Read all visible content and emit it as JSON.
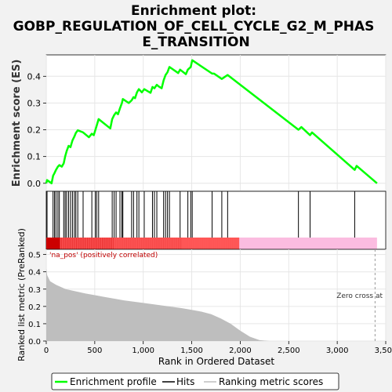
{
  "title": "Enrichment plot:\nGOBP_REGULATION_OF_CELL_CYCLE_G2_M_PHAS\nE_TRANSITION",
  "chart_data": [
    {
      "panel": "enrichment",
      "type": "line",
      "ylabel": "Enrichment score (ES)",
      "ylim": [
        -0.03,
        0.48
      ],
      "xlim": [
        0,
        3500
      ],
      "yticks": [
        0.0,
        0.1,
        0.2,
        0.3,
        0.4
      ],
      "ytick_labels": [
        "0.0",
        "0.1",
        "0.2",
        "0.3",
        "0.4"
      ],
      "grid": true,
      "series": [
        {
          "name": "Enrichment profile",
          "color": "#00ff00",
          "points": [
            [
              0,
              0.0
            ],
            [
              8,
              0.012
            ],
            [
              55,
              0.0
            ],
            [
              70,
              0.028
            ],
            [
              85,
              0.038
            ],
            [
              100,
              0.05
            ],
            [
              120,
              0.062
            ],
            [
              135,
              0.068
            ],
            [
              160,
              0.062
            ],
            [
              180,
              0.075
            ],
            [
              195,
              0.1
            ],
            [
              210,
              0.12
            ],
            [
              230,
              0.14
            ],
            [
              250,
              0.135
            ],
            [
              270,
              0.16
            ],
            [
              290,
              0.175
            ],
            [
              305,
              0.188
            ],
            [
              325,
              0.198
            ],
            [
              380,
              0.19
            ],
            [
              440,
              0.172
            ],
            [
              470,
              0.185
            ],
            [
              490,
              0.18
            ],
            [
              505,
              0.198
            ],
            [
              520,
              0.215
            ],
            [
              540,
              0.24
            ],
            [
              660,
              0.205
            ],
            [
              680,
              0.24
            ],
            [
              700,
              0.255
            ],
            [
              720,
              0.265
            ],
            [
              740,
              0.258
            ],
            [
              760,
              0.28
            ],
            [
              780,
              0.3
            ],
            [
              790,
              0.315
            ],
            [
              850,
              0.3
            ],
            [
              880,
              0.31
            ],
            [
              900,
              0.322
            ],
            [
              915,
              0.318
            ],
            [
              935,
              0.34
            ],
            [
              955,
              0.352
            ],
            [
              985,
              0.34
            ],
            [
              1010,
              0.352
            ],
            [
              1075,
              0.338
            ],
            [
              1095,
              0.36
            ],
            [
              1115,
              0.355
            ],
            [
              1140,
              0.368
            ],
            [
              1160,
              0.362
            ],
            [
              1190,
              0.355
            ],
            [
              1210,
              0.385
            ],
            [
              1230,
              0.405
            ],
            [
              1250,
              0.415
            ],
            [
              1270,
              0.435
            ],
            [
              1360,
              0.412
            ],
            [
              1380,
              0.425
            ],
            [
              1440,
              0.408
            ],
            [
              1460,
              0.425
            ],
            [
              1490,
              0.435
            ],
            [
              1505,
              0.46
            ],
            [
              1710,
              0.41
            ],
            [
              1730,
              0.41
            ],
            [
              1810,
              0.39
            ],
            [
              1870,
              0.405
            ],
            [
              2600,
              0.2
            ],
            [
              2630,
              0.21
            ],
            [
              2720,
              0.18
            ],
            [
              2740,
              0.19
            ],
            [
              3180,
              0.05
            ],
            [
              3200,
              0.065
            ],
            [
              3410,
              0.0
            ]
          ]
        }
      ]
    },
    {
      "panel": "hits",
      "type": "scatter",
      "series": [
        {
          "name": "Hits",
          "color": "#000000",
          "x": [
            8,
            70,
            85,
            100,
            120,
            135,
            180,
            195,
            210,
            230,
            250,
            270,
            290,
            305,
            325,
            380,
            470,
            505,
            520,
            540,
            680,
            700,
            720,
            760,
            780,
            790,
            880,
            900,
            935,
            955,
            1010,
            1095,
            1115,
            1140,
            1210,
            1230,
            1250,
            1270,
            1380,
            1460,
            1490,
            1505,
            1710,
            1810,
            1870,
            2600,
            2720,
            3180
          ]
        }
      ]
    },
    {
      "panel": "ranked_metric",
      "type": "area",
      "xlabel": "Rank in Ordered Dataset",
      "ylabel": "Ranked list metric (PreRanked)",
      "xlim": [
        0,
        3500
      ],
      "ylim": [
        0,
        0.53
      ],
      "xticks": [
        0,
        500,
        1000,
        1500,
        2000,
        2500,
        3000,
        3500
      ],
      "xtick_labels": [
        "0",
        "500",
        "1,000",
        "1,500",
        "2,000",
        "2,500",
        "3,000",
        "3,500"
      ],
      "yticks": [
        0.0,
        0.1,
        0.2,
        0.3,
        0.4,
        0.5
      ],
      "ytick_labels": [
        "0.0",
        "0.1",
        "0.2",
        "0.3",
        "0.4",
        "0.5"
      ],
      "grid": true,
      "series": [
        {
          "name": "Ranking metric scores",
          "color": "#bebebe",
          "points": [
            [
              0,
              0.42
            ],
            [
              10,
              0.38
            ],
            [
              40,
              0.345
            ],
            [
              100,
              0.325
            ],
            [
              200,
              0.3
            ],
            [
              400,
              0.275
            ],
            [
              600,
              0.255
            ],
            [
              800,
              0.235
            ],
            [
              1000,
              0.22
            ],
            [
              1200,
              0.205
            ],
            [
              1400,
              0.19
            ],
            [
              1500,
              0.18
            ],
            [
              1600,
              0.17
            ],
            [
              1700,
              0.155
            ],
            [
              1800,
              0.13
            ],
            [
              1900,
              0.1
            ],
            [
              2000,
              0.06
            ],
            [
              2100,
              0.025
            ],
            [
              2200,
              0.005
            ],
            [
              2300,
              0.0
            ],
            [
              3410,
              0.0
            ]
          ]
        }
      ],
      "annotations": {
        "pos_label": "'na_pos' (positively correlated)",
        "zero_cross_label": "Zero cross at",
        "zero_cross_x": 3390
      }
    }
  ],
  "heatbar": {
    "max_rank": 3410,
    "dark_red": "#cc0000",
    "red": "#ff5a5a",
    "pink": "#fbbce0",
    "split_rank": 1990
  },
  "legend": {
    "items": [
      {
        "label": "Enrichment profile",
        "color": "#00ff00"
      },
      {
        "label": "Hits",
        "color": "#000000"
      },
      {
        "label": "Ranking metric scores",
        "color": "#bebebe"
      }
    ]
  }
}
